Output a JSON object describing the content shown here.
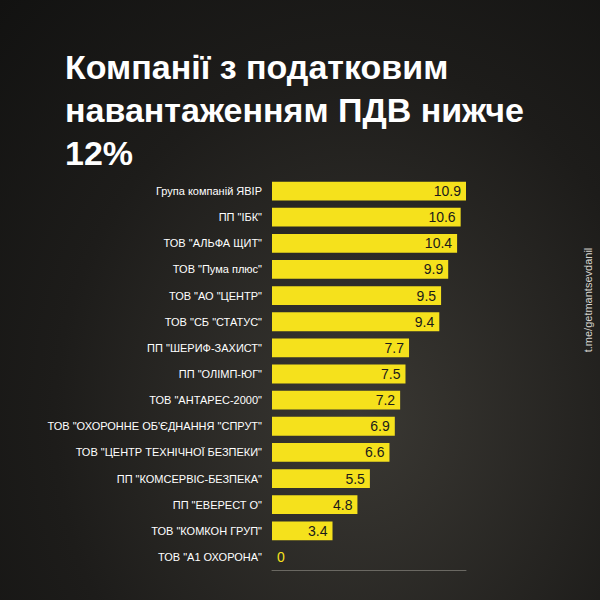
{
  "chart_data": {
    "type": "bar",
    "orientation": "horizontal",
    "title": "Компанії з податковим навантаженням ПДВ нижче 12%",
    "annotations": [
      "t.me/getmantsevdanil"
    ],
    "categories": [
      "Група компаній ЯВІР",
      "ПП \"ІБК\"",
      "ТОВ \"АЛЬФА ЩИТ\"",
      "ТОВ \"Пума плюс\"",
      "ТОВ \"АО \"ЦЕНТР\"",
      "ТОВ \"СБ \"СТАТУС\"",
      "ПП \"ШЕРИФ-ЗАХИСТ\"",
      "ПП \"ОЛІМП-ЮГ\"",
      "ТОВ \"АНТАРЕС-2000\"",
      "ТОВ \"ОХОРОННЕ ОБ'ЄДНАННЯ \"СПРУТ\"",
      "ТОВ \"ЦЕНТР ТЕХНІЧНОЇ БЕЗПЕКИ\"",
      "ПП \"КОМСЕРВІС-БЕЗПЕКА\"",
      "ПП \"ЕВЕРЕСТ О\"",
      "ТОВ \"КОМКОН ГРУП\"",
      "ТОВ \"А1 ОХОРОНА\""
    ],
    "values": [
      10.9,
      10.6,
      10.4,
      9.9,
      9.5,
      9.4,
      7.7,
      7.5,
      7.2,
      6.9,
      6.6,
      5.5,
      4.8,
      3.4,
      0
    ],
    "color": "#f5e11c",
    "xlim": [
      0,
      10.9
    ],
    "xticks": [],
    "tick_labels": "y",
    "data_labels": true,
    "grid": false
  }
}
